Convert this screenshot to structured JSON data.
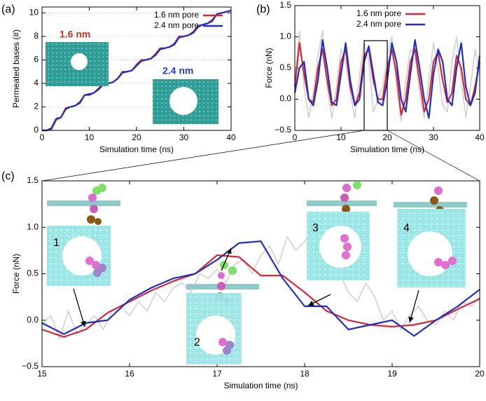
{
  "chart_data": [
    {
      "type": "line",
      "panel_label": "(a)",
      "x_label": "Simulation time (ns)",
      "y_label": "Permeated bases (#)",
      "x": [
        0,
        1,
        2,
        3,
        4,
        5,
        6,
        7,
        8,
        9,
        10,
        11,
        12,
        13,
        14,
        15,
        16,
        17,
        18,
        19,
        20,
        21,
        22,
        23,
        24,
        25,
        26,
        27,
        28,
        29,
        30,
        31,
        32,
        33,
        34,
        35,
        36,
        37,
        38,
        39,
        40
      ],
      "series": [
        {
          "name": "1.6 nm pore",
          "color": "#d62839",
          "values": [
            0,
            0,
            0.1,
            0.9,
            1.1,
            1.9,
            2.0,
            2.1,
            2.3,
            3.0,
            3.0,
            3.2,
            3.6,
            4.0,
            4.0,
            4.1,
            4.4,
            5.0,
            5.0,
            5.1,
            5.6,
            6.0,
            6.0,
            6.1,
            6.5,
            7.0,
            7.0,
            7.1,
            7.4,
            8.0,
            8.0,
            8.1,
            8.4,
            8.9,
            9.0,
            9.1,
            9.4,
            9.9,
            10.0,
            10.1,
            10.2
          ]
        },
        {
          "name": "2.4 nm pore",
          "color": "#1f2fbf",
          "values": [
            0,
            0,
            0.2,
            1.0,
            1.1,
            1.8,
            2.0,
            2.1,
            2.4,
            3.0,
            3.1,
            3.2,
            3.5,
            3.9,
            4.0,
            4.1,
            4.4,
            4.9,
            5.0,
            5.1,
            5.5,
            5.9,
            6.0,
            6.1,
            6.4,
            6.9,
            7.0,
            7.1,
            7.3,
            7.9,
            8.0,
            8.1,
            8.3,
            8.8,
            9.0,
            9.1,
            9.3,
            9.9,
            10.0,
            10.1,
            10.2
          ]
        }
      ],
      "annotations": [
        "1.6 nm",
        "2.4 nm"
      ],
      "xlim": [
        0,
        40
      ],
      "ylim": [
        0,
        10.5
      ],
      "xticks": [
        0,
        10,
        20,
        30,
        40
      ],
      "yticks": [
        0,
        2,
        4,
        6,
        8,
        10
      ],
      "grid": true,
      "legend": "upper right"
    },
    {
      "type": "line",
      "panel_label": "(b)",
      "x_label": "Simulation time (ns)",
      "y_label": "Force (nN)",
      "x": [
        0,
        1,
        2,
        3,
        4,
        5,
        6,
        7,
        8,
        9,
        10,
        11,
        12,
        13,
        14,
        15,
        16,
        17,
        18,
        19,
        20,
        21,
        22,
        23,
        24,
        25,
        26,
        27,
        28,
        29,
        30,
        31,
        32,
        33,
        34,
        35,
        36,
        37,
        38,
        39,
        40
      ],
      "series": [
        {
          "color": "#d0d0d0",
          "values": [
            0.3,
            1.1,
            0.2,
            -0.3,
            0.1,
            0.7,
            1.1,
            0.2,
            -0.3,
            0.2,
            0.8,
            0.6,
            0.1,
            -0.3,
            0.4,
            0.9,
            0.6,
            -0.2,
            0.0,
            0.2,
            0.7,
            1.0,
            0.2,
            -0.35,
            0.3,
            0.8,
            0.7,
            0.1,
            -0.3,
            0.3,
            0.9,
            0.5,
            -0.1,
            -0.2,
            0.6,
            1.0,
            0.3,
            -0.3,
            0.2,
            0.8,
            0.4
          ]
        },
        {
          "name": "1.6 nm pore",
          "color": "#d62839",
          "values": [
            0.2,
            0.9,
            0.4,
            0.0,
            -0.05,
            0.5,
            0.8,
            0.3,
            -0.1,
            0.0,
            0.6,
            0.8,
            0.2,
            -0.1,
            0.1,
            0.7,
            0.8,
            0.3,
            0.0,
            0.0,
            0.5,
            0.8,
            0.4,
            -0.25,
            0.0,
            0.6,
            0.8,
            0.3,
            -0.2,
            0.0,
            0.6,
            0.75,
            0.3,
            -0.05,
            0.1,
            0.7,
            0.5,
            0.0,
            -0.1,
            0.2,
            0.6
          ]
        },
        {
          "name": "2.4 nm pore",
          "color": "#1f2fbf",
          "values": [
            0.1,
            0.5,
            0.6,
            0.0,
            -0.1,
            0.3,
            0.95,
            0.5,
            -0.05,
            -0.1,
            0.4,
            0.9,
            0.3,
            -0.1,
            0.0,
            0.6,
            0.85,
            0.4,
            -0.05,
            -0.1,
            0.3,
            0.9,
            0.6,
            0.0,
            -0.2,
            0.4,
            0.95,
            0.5,
            0.0,
            -0.3,
            0.4,
            0.8,
            0.6,
            0.0,
            -0.1,
            0.5,
            0.9,
            0.2,
            -0.1,
            0.1,
            0.7
          ]
        }
      ],
      "xlim": [
        0,
        40
      ],
      "ylim": [
        -0.5,
        1.5
      ],
      "xticks": [
        0,
        10,
        20,
        30,
        40
      ],
      "yticks": [
        {
          "value": -0.5,
          "label": "−0.5"
        },
        {
          "value": 0,
          "label": "0.0"
        },
        {
          "value": 0.5,
          "label": "0.5"
        },
        {
          "value": 1,
          "label": "1.0"
        },
        {
          "value": 1.5,
          "label": "1.5"
        }
      ],
      "grid": false,
      "legend": "upper center"
    },
    {
      "type": "line",
      "panel_label": "(c)",
      "x_label": "Simulation time (ns)",
      "y_label": "Force (nN)",
      "x": [
        15,
        15.25,
        15.5,
        15.75,
        16,
        16.25,
        16.5,
        16.75,
        17,
        17.25,
        17.5,
        17.75,
        18,
        18.25,
        18.5,
        18.75,
        19,
        19.25,
        19.5,
        19.75,
        20
      ],
      "series": [
        {
          "color": "#d0d0d0",
          "x": [
            15,
            15.1,
            15.2,
            15.3,
            15.4,
            15.5,
            15.6,
            15.7,
            15.8,
            15.9,
            16,
            16.1,
            16.2,
            16.3,
            16.4,
            16.5,
            16.6,
            16.7,
            16.8,
            16.9,
            17,
            17.1,
            17.2,
            17.3,
            17.4,
            17.5,
            17.6,
            17.7,
            17.8,
            17.9,
            18,
            18.1,
            18.2,
            18.3,
            18.4,
            18.5,
            18.6,
            18.7,
            18.8,
            18.9,
            19,
            19.1,
            19.2,
            19.3,
            19.4,
            19.5,
            19.6,
            19.7,
            19.8,
            19.9,
            20
          ],
          "values": [
            -0.05,
            0.05,
            -0.2,
            0.1,
            -0.15,
            -0.05,
            0.05,
            -0.1,
            0.1,
            0.15,
            0.05,
            0.2,
            0.1,
            0.3,
            0.2,
            0.35,
            0.4,
            0.3,
            0.5,
            0.45,
            0.55,
            0.4,
            0.6,
            0.65,
            0.5,
            0.7,
            0.8,
            0.6,
            0.9,
            0.75,
            0.85,
            1.0,
            0.8,
            0.6,
            0.5,
            0.3,
            0.2,
            0.4,
            0.25,
            0.0,
            0.1,
            -0.1,
            0.05,
            0.15,
            0.0,
            -0.05,
            0.1,
            0.0,
            0.2,
            0.15,
            0.25
          ]
        },
        {
          "color": "#d62839",
          "values": [
            -0.1,
            -0.18,
            -0.1,
            0.08,
            0.2,
            0.32,
            0.42,
            0.5,
            0.7,
            0.68,
            0.48,
            0.48,
            0.3,
            0.1,
            0.0,
            -0.05,
            -0.07,
            -0.05,
            0.0,
            0.12,
            0.23
          ]
        },
        {
          "color": "#1f2fbf",
          "values": [
            -0.03,
            -0.15,
            -0.03,
            0.0,
            0.22,
            0.35,
            0.45,
            0.5,
            0.65,
            0.83,
            0.85,
            0.45,
            0.15,
            0.15,
            -0.1,
            -0.05,
            0.0,
            -0.17,
            0.0,
            0.15,
            0.33
          ]
        }
      ],
      "annotations": [
        "1",
        "2",
        "3",
        "4"
      ],
      "xlim": [
        15,
        20
      ],
      "ylim": [
        -0.5,
        1.5
      ],
      "xticks": [
        15,
        16,
        17,
        18,
        19,
        20
      ],
      "yticks": [
        {
          "value": -0.5,
          "label": "−0.5"
        },
        {
          "value": 0,
          "label": "0.0"
        },
        {
          "value": 0.5,
          "label": "0.5"
        },
        {
          "value": 1,
          "label": "1.0"
        },
        {
          "value": 1.5,
          "label": "1.5"
        }
      ],
      "grid": false
    }
  ]
}
